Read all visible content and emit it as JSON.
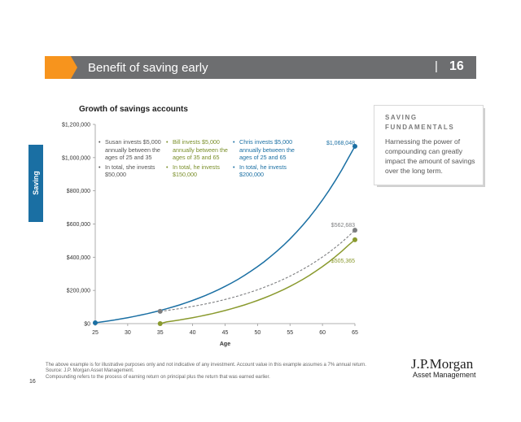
{
  "header": {
    "title": "Benefit of saving early",
    "separator": "|",
    "page": "16"
  },
  "side_tab": {
    "label": "Saving"
  },
  "fundamentals": {
    "title": "SAVING FUNDAMENTALS",
    "body": "Harnessing the power of compounding can greatly impact the amount of savings over the long term."
  },
  "footer": {
    "note1": "The above example is for illustrative purposes only and not indicative of any investment. Account value in this example assumes a 7% annual return.",
    "note2": "Source: J.P. Morgan Asset Management.",
    "note3": "Compounding refers to the process of earning return on principal plus the return that was earned earlier.",
    "page_number": "16",
    "logo_name": "J.P.Morgan",
    "logo_sub": "Asset Management"
  },
  "legend": {
    "susan": [
      "Susan invests $5,000 annually between the ages of 25 and 35",
      "In total, she invests $50,000"
    ],
    "bill": [
      "Bill invests $5,000 annually between the ages of 35 and 65",
      "In total, he invests $150,000"
    ],
    "chris": [
      "Chris invests $5,000 annually between the ages of 25 and 65",
      "In total, he invests $200,000"
    ]
  },
  "colors": {
    "chris": "#1a6fa3",
    "susan": "#7d7e80",
    "bill": "#8a9a2e",
    "accent": "#f7941d",
    "header": "#6d6e70"
  },
  "chart_data": {
    "type": "line",
    "title": "Growth of savings accounts",
    "xlabel": "Age",
    "ylabel": "",
    "xlim": [
      25,
      65
    ],
    "ylim": [
      0,
      1200000
    ],
    "x_ticks": [
      "25",
      "30",
      "35",
      "40",
      "45",
      "50",
      "55",
      "60",
      "65"
    ],
    "y_ticks": [
      "$0",
      "$200,000",
      "$400,000",
      "$600,000",
      "$800,000",
      "$1,000,000",
      "$1,200,000"
    ],
    "series": [
      {
        "name": "Chris",
        "style": "solid",
        "start_age": 25,
        "end_age": 65,
        "contribution_years": [
          25,
          65
        ],
        "annual_contribution": 5000,
        "rate": 0.07,
        "x": [
          25,
          30,
          35,
          40,
          45,
          50,
          55,
          60,
          65
        ],
        "y": [
          5000,
          41000,
          73900,
          133000,
          219000,
          341000,
          514000,
          760000,
          1068048
        ]
      },
      {
        "name": "Susan",
        "style": "dashed",
        "start_age": 35,
        "end_age": 65,
        "contribution_years": [
          25,
          35
        ],
        "annual_contribution": 5000,
        "rate": 0.07,
        "x": [
          35,
          40,
          45,
          50,
          55,
          60,
          65
        ],
        "y": [
          73900,
          103700,
          145400,
          204000,
          286000,
          401000,
          562683
        ]
      },
      {
        "name": "Bill",
        "style": "solid",
        "start_age": 35,
        "end_age": 65,
        "contribution_years": [
          35,
          65
        ],
        "annual_contribution": 5000,
        "rate": 0.07,
        "x": [
          35,
          40,
          45,
          50,
          55,
          60,
          65
        ],
        "y": [
          0,
          29000,
          73000,
          136000,
          227000,
          355000,
          505365
        ]
      }
    ],
    "end_labels": {
      "chris": "$1,068,048",
      "susan": "$562,683",
      "bill": "$505,365"
    }
  }
}
